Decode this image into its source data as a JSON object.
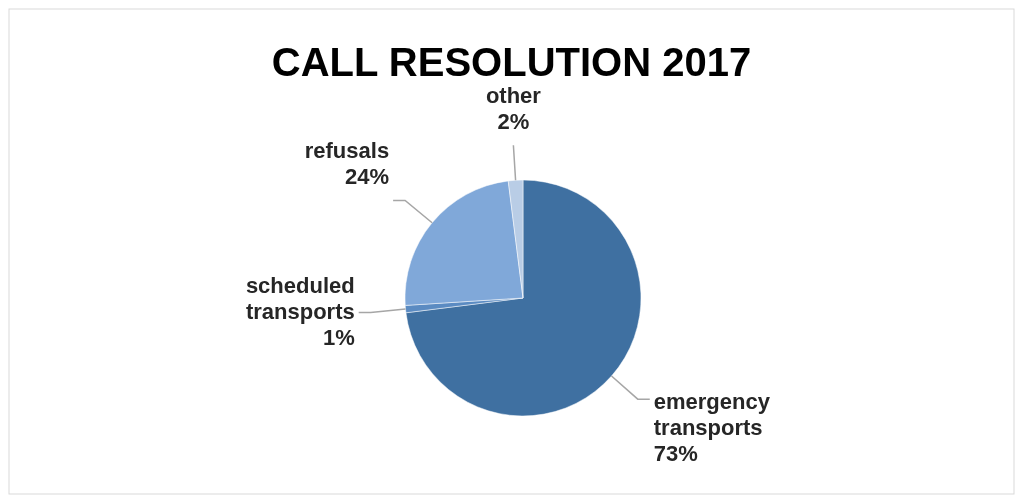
{
  "chart_data": {
    "type": "pie",
    "title": "CALL RESOLUTION 2017",
    "categories": [
      "emergency transports",
      "scheduled transports",
      "refusals",
      "other"
    ],
    "values": [
      73,
      1,
      24,
      2
    ],
    "colors": [
      "#3f70a1",
      "#5b8bc2",
      "#80a8d9",
      "#b9cde6"
    ],
    "value_labels": [
      "73%",
      "1%",
      "24%",
      "2%"
    ]
  }
}
